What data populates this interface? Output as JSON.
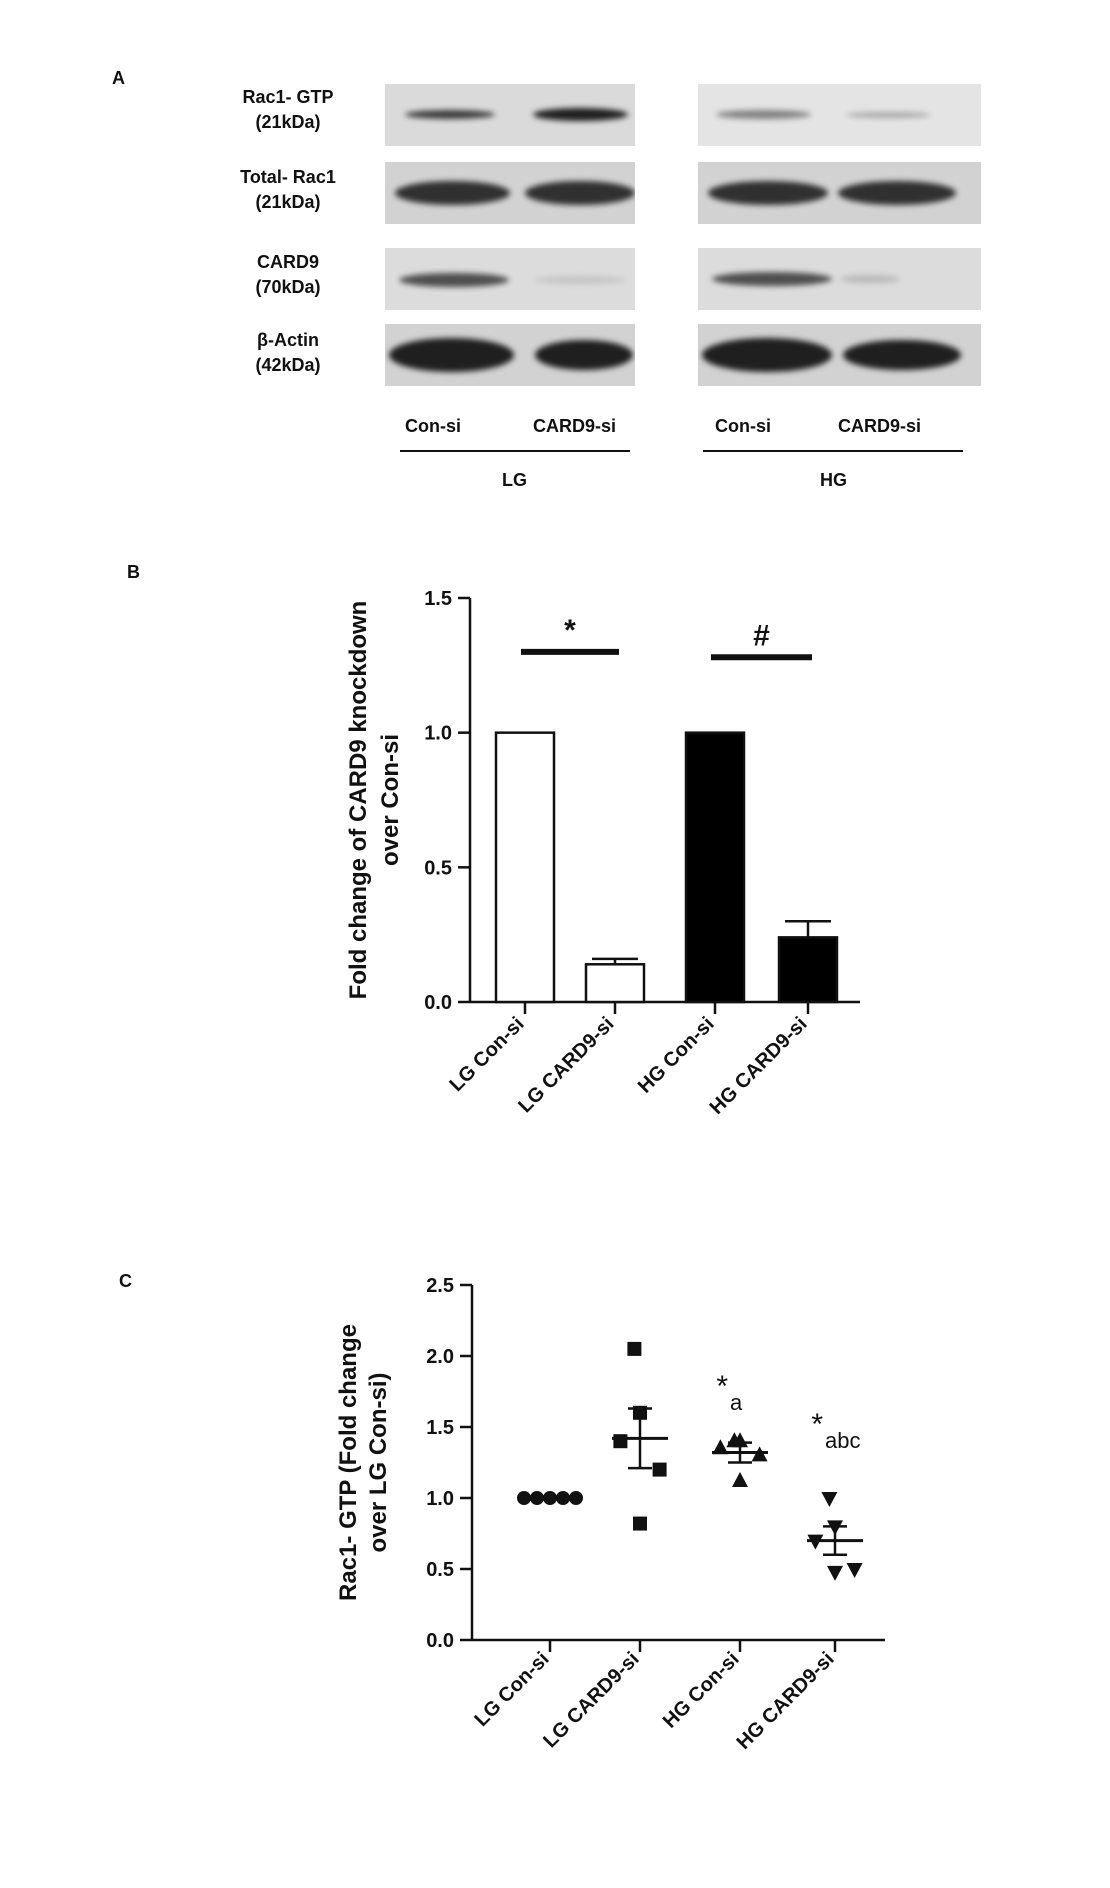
{
  "panels": [
    {
      "letter": "A"
    },
    {
      "letter": "B"
    },
    {
      "letter": "C"
    }
  ],
  "blot": {
    "rows": [
      {
        "name": "Rac1- GTP",
        "size": "(21kDa)"
      },
      {
        "name": "Total- Rac1",
        "size": "(21kDa)"
      },
      {
        "name": "CARD9",
        "size": "(70kDa)"
      },
      {
        "name": "β-Actin",
        "size": "(42kDa)"
      }
    ],
    "lanes": [
      "Con-si",
      "CARD9-si",
      "Con-si",
      "CARD9-si"
    ],
    "groups": [
      "LG",
      "HG"
    ]
  },
  "chart_data": [
    {
      "type": "bar",
      "categories": [
        "LG Con-si",
        "LG CARD9-si",
        "HG Con-si",
        "HG CARD9-si"
      ],
      "values": [
        1.0,
        0.14,
        1.0,
        0.24
      ],
      "error": [
        0,
        0.02,
        0,
        0.06
      ],
      "fill": [
        "#ffffff",
        "#ffffff",
        "#000000",
        "#000000"
      ],
      "ylabel": [
        "Fold change of CARD9 knockdown",
        "over Con-si"
      ],
      "ylim": [
        0,
        1.5
      ],
      "yticks": [
        0.0,
        0.5,
        1.0,
        1.5
      ],
      "significance": [
        {
          "symbol": "*",
          "from": 0,
          "to": 1,
          "y": 1.3
        },
        {
          "symbol": "#",
          "from": 2,
          "to": 3,
          "y": 1.28
        }
      ]
    },
    {
      "type": "scatter",
      "categories": [
        "LG Con-si",
        "LG CARD9-si",
        "HG Con-si",
        "HG CARD9-si"
      ],
      "markers": [
        "circle",
        "square",
        "triangle-up",
        "triangle-down"
      ],
      "points": [
        [
          1.0,
          1.0,
          1.0,
          1.0,
          1.0
        ],
        [
          2.05,
          1.6,
          1.4,
          1.2,
          0.82
        ],
        [
          1.4,
          1.4,
          1.35,
          1.3,
          1.12
        ],
        [
          1.0,
          0.8,
          0.7,
          0.5,
          0.48
        ]
      ],
      "mean": [
        1.0,
        1.42,
        1.32,
        0.7
      ],
      "sem": [
        0,
        0.21,
        0.07,
        0.1
      ],
      "ylabel": [
        "Rac1- GTP (Fold change",
        "over LG Con-si)"
      ],
      "ylim": [
        0,
        2.5
      ],
      "yticks": [
        0.0,
        0.5,
        1.0,
        1.5,
        2.0,
        2.5
      ],
      "annotations": [
        {
          "star": "*",
          "sub": "a",
          "category": 2,
          "y": 1.72
        },
        {
          "star": "*",
          "sub": "abc",
          "category": 3,
          "y": 1.45
        }
      ]
    }
  ]
}
